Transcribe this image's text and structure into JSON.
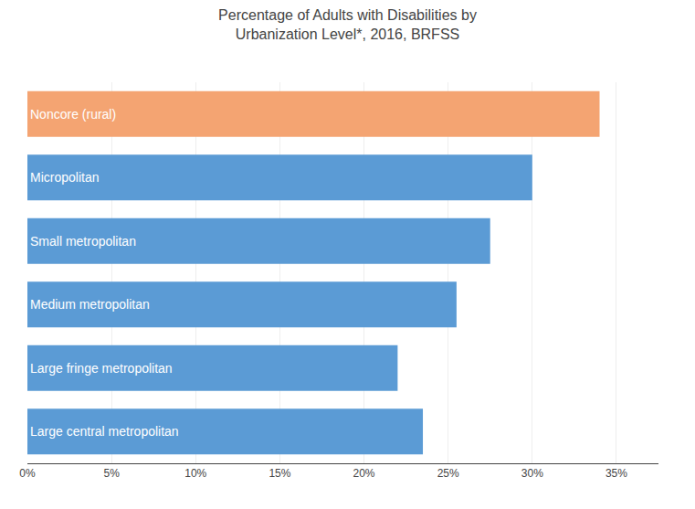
{
  "chart_data": {
    "type": "bar",
    "orientation": "horizontal",
    "title": "Percentage of Adults with Disabilities by\nUrbanization Level*, 2016, BRFSS",
    "categories": [
      "Large central metropolitan",
      "Large fringe metropolitan",
      "Medium metropolitan",
      "Small metropolitan",
      "Micropolitan",
      "Noncore (rural)"
    ],
    "values": [
      23.5,
      22.0,
      25.5,
      27.5,
      30.0,
      34.0
    ],
    "colors": [
      "#5b9bd5",
      "#5b9bd5",
      "#5b9bd5",
      "#5b9bd5",
      "#5b9bd5",
      "#f4a472"
    ],
    "xlim": [
      0,
      37.5
    ],
    "xticks": [
      {
        "value": 0,
        "label": "0%"
      },
      {
        "value": 5,
        "label": "5%"
      },
      {
        "value": 10,
        "label": "10%"
      },
      {
        "value": 15,
        "label": "15%"
      },
      {
        "value": 20,
        "label": "20%"
      },
      {
        "value": 25,
        "label": "25%"
      },
      {
        "value": 30,
        "label": "30%"
      },
      {
        "value": 35,
        "label": "35%"
      }
    ],
    "grid": true,
    "tick_labels": "x"
  }
}
